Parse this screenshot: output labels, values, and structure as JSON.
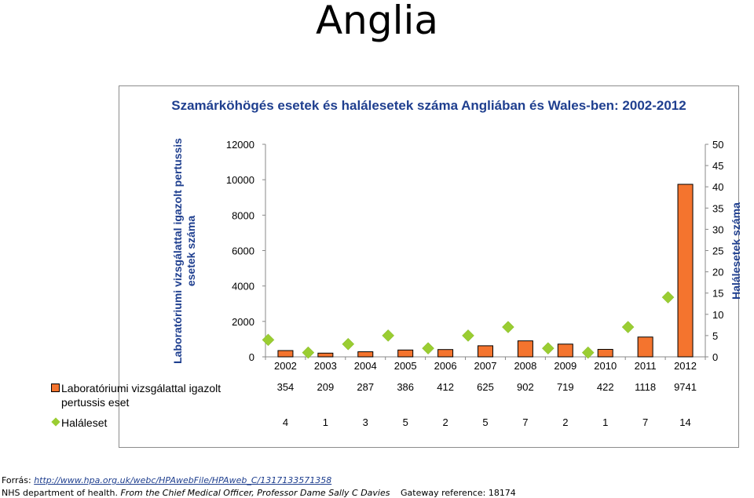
{
  "page": {
    "title": "Anglia"
  },
  "footer": {
    "source_label": "Forrás:",
    "source_url": "http://www.hpa.org.uk/webc/HPAwebFile/HPAweb_C/1317133571358",
    "org": "NHS department of health.",
    "credit_italic": "From the Chief Medical Officer, Professor Dame Sally C Davies",
    "gateway": "Gateway reference: 18174"
  },
  "colors": {
    "bar_fill": "#f4742e",
    "marker_fill": "#9acd32",
    "title_color": "#1f3f8f"
  },
  "chart_data": {
    "type": "bar",
    "title": "Szamárköhögés esetek és halálesetek száma Angliában és Wales-ben: 2002-2012",
    "categories": [
      "2002",
      "2003",
      "2004",
      "2005",
      "2006",
      "2007",
      "2008",
      "2009",
      "2010",
      "2011",
      "2012"
    ],
    "ylabel_left": "Laboratóriumi vizsgálattal igazolt pertussis esetek száma",
    "ylabel_right": "Halálesetek száma",
    "ylim_left": [
      0,
      12000
    ],
    "ylim_right": [
      0,
      50
    ],
    "yticks_left": [
      "0",
      "2000",
      "4000",
      "6000",
      "8000",
      "10000",
      "12000"
    ],
    "yticks_right": [
      "0",
      "5",
      "10",
      "15",
      "20",
      "25",
      "30",
      "35",
      "40",
      "45",
      "50"
    ],
    "series": [
      {
        "name": "Laboratóriumi vizsgálattal igazolt pertussis eset",
        "type": "bar",
        "axis": "left",
        "values": [
          354,
          209,
          287,
          386,
          412,
          625,
          902,
          719,
          422,
          1118,
          9741
        ]
      },
      {
        "name": "Haláleset",
        "type": "marker",
        "axis": "right",
        "values": [
          4,
          1,
          3,
          5,
          2,
          5,
          7,
          2,
          1,
          7,
          14
        ]
      }
    ],
    "legend": "data-table",
    "grid": false
  }
}
